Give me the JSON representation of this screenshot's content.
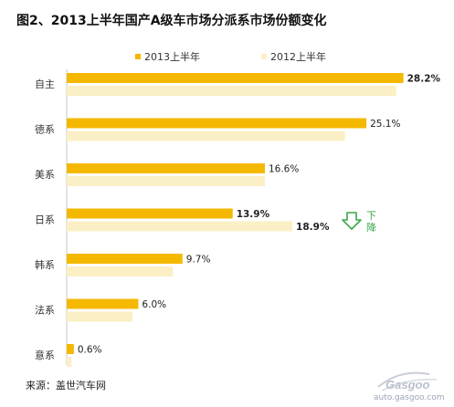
{
  "title": "图2、2013上半年国产A级车市场分派系市场份额变化",
  "source": "来源：盖世汽车网",
  "watermark": {
    "logo_icon": "gasgoo-logo-icon",
    "site": "auto.gasgoo.com"
  },
  "annotation": {
    "text_line1": "下",
    "text_line2": "降",
    "icon": "down-arrow-icon",
    "color": "#3aa64a"
  },
  "chart_data": {
    "type": "bar",
    "orientation": "horizontal",
    "title": "图2、2013上半年国产A级车市场分派系市场份额变化",
    "categories": [
      "自主",
      "德系",
      "美系",
      "日系",
      "韩系",
      "法系",
      "意系"
    ],
    "series": [
      {
        "name": "2013上半年",
        "color": "#f5b800",
        "values": [
          28.2,
          25.1,
          16.6,
          13.9,
          9.7,
          6.0,
          0.6
        ],
        "labels": [
          "28.2%",
          "25.1%",
          "16.6%",
          "13.9%",
          "9.7%",
          "6.0%",
          "0.6%"
        ],
        "bold_labels": [
          true,
          false,
          false,
          true,
          false,
          false,
          false
        ]
      },
      {
        "name": "2012上半年",
        "color": "#fbefc6",
        "values": [
          27.6,
          23.3,
          16.6,
          18.9,
          8.9,
          5.5,
          0.4
        ],
        "labels": [
          "",
          "",
          "",
          "18.9%",
          "",
          "",
          ""
        ],
        "bold_labels": [
          false,
          false,
          false,
          true,
          false,
          false,
          false
        ]
      }
    ],
    "xlim": [
      0,
      30
    ],
    "legend_position": "top",
    "grid": false
  }
}
